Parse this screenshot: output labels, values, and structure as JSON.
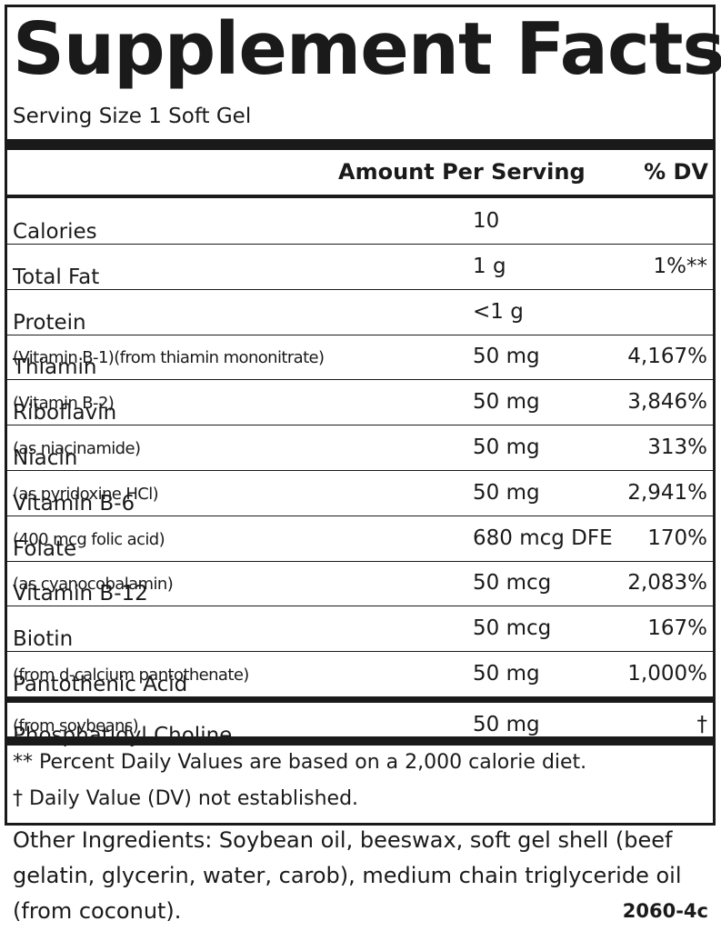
{
  "title": "Supplement Facts",
  "serving_size": "Serving Size 1 Soft Gel",
  "header": {
    "amount": "Amount Per Serving",
    "dv": "% DV"
  },
  "rows": [
    {
      "name": "Calories",
      "amount": "10"
    },
    {
      "name": "Total Fat",
      "amount": "1 g",
      "dv": "1%**"
    },
    {
      "name": "Protein",
      "amount": "<1 g"
    },
    {
      "name": "Thiamin",
      "note": "(Vitamin B-1)(from thiamin mononitrate)",
      "amount": "50 mg",
      "dv": "4,167%"
    },
    {
      "name": "Riboflavin",
      "note": "(Vitamin B-2)",
      "amount": "50 mg",
      "dv": "3,846%"
    },
    {
      "name": "Niacin",
      "note": "(as niacinamide)",
      "amount": "50 mg",
      "dv": "313%"
    },
    {
      "name": "Vitamin B-6",
      "note": "(as pyridoxine HCl)",
      "amount": "50 mg",
      "dv": "2,941%"
    },
    {
      "name": "Folate",
      "note": "(400 mcg folic acid)",
      "amount": "680 mcg DFE",
      "dv": "170%"
    },
    {
      "name": "Vitamin B-12",
      "note": "(as cyanocobalamin)",
      "amount": "50 mcg",
      "dv": "2,083%"
    },
    {
      "name": "Biotin",
      "amount": "50 mcg",
      "dv": "167%"
    },
    {
      "name": "Pantothenic Acid",
      "note": "(from d-calcium pantothenate)",
      "amount": "50 mg",
      "dv": "1,000%"
    }
  ],
  "other_row": {
    "name": "Phosphatidyl Choline",
    "note": "(from soybeans)",
    "amount": "50 mg",
    "dv": "†"
  },
  "footnotes": [
    "** Percent Daily Values are based on a 2,000 calorie diet.",
    "† Daily Value (DV) not established."
  ],
  "other_ingredients": "Other Ingredients:  Soybean oil, beeswax, soft gel shell (beef gelatin, glycerin, water, carob), medium chain triglyceride oil (from coconut).",
  "code": "2060-4c"
}
